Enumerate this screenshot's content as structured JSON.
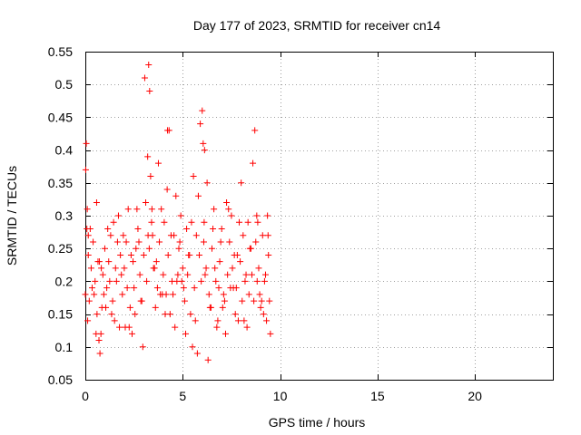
{
  "chart_data": {
    "type": "scatter",
    "title": "Day 177 of 2023, SRMTID for receiver cn14",
    "xlabel": "GPS time / hours",
    "ylabel": "SRMTID / TECUs",
    "xlim": [
      0,
      24
    ],
    "ylim": [
      0.05,
      0.55
    ],
    "xticks": [
      0,
      5,
      10,
      15,
      20
    ],
    "xtick_labels": [
      "0",
      "5",
      "10",
      "15",
      "20"
    ],
    "yticks": [
      0.05,
      0.1,
      0.15,
      0.2,
      0.25,
      0.3,
      0.35,
      0.4,
      0.45,
      0.5,
      0.55
    ],
    "ytick_labels": [
      "0.05",
      "0.1",
      "0.15",
      "0.2",
      "0.25",
      "0.3",
      "0.35",
      "0.4",
      "0.45",
      "0.5",
      "0.55"
    ],
    "grid": true,
    "marker": "+",
    "color": "#ff0000",
    "series": [
      {
        "name": "cn14",
        "x": [
          0.0,
          0.05,
          0.1,
          0.15,
          0.2,
          0.25,
          0.3,
          0.4,
          0.5,
          0.6,
          0.7,
          0.75,
          0.8,
          0.85,
          0.9,
          1.0,
          1.1,
          1.2,
          1.3,
          1.4,
          1.5,
          1.6,
          1.7,
          1.8,
          1.9,
          2.0,
          2.1,
          2.2,
          2.3,
          2.4,
          2.5,
          2.6,
          2.7,
          2.8,
          2.9,
          3.0,
          3.1,
          3.2,
          3.25,
          3.3,
          3.35,
          3.4,
          3.5,
          3.6,
          3.7,
          3.8,
          3.9,
          4.0,
          4.1,
          4.2,
          4.3,
          4.4,
          4.5,
          4.6,
          4.7,
          4.8,
          4.9,
          5.0,
          5.1,
          5.2,
          5.3,
          5.4,
          5.5,
          5.6,
          5.7,
          5.8,
          5.9,
          6.0,
          6.05,
          6.1,
          6.2,
          6.3,
          6.4,
          6.5,
          6.6,
          6.7,
          6.8,
          6.9,
          7.0,
          7.1,
          7.2,
          7.3,
          7.4,
          7.5,
          7.6,
          7.7,
          7.8,
          7.9,
          8.0,
          8.1,
          8.2,
          8.3,
          8.4,
          8.5,
          8.6,
          8.7,
          8.8,
          8.9,
          9.0,
          9.1,
          9.2,
          9.3,
          9.4,
          9.5,
          0.02,
          0.15,
          0.35,
          0.55,
          0.65,
          0.95,
          1.15,
          1.35,
          1.55,
          1.75,
          1.95,
          2.15,
          2.35,
          2.55,
          2.75,
          2.95,
          3.15,
          3.45,
          3.65,
          3.85,
          4.05,
          4.25,
          4.45,
          4.65,
          4.85,
          5.05,
          5.25,
          5.45,
          5.65,
          5.85,
          6.15,
          6.35,
          6.55,
          6.75,
          6.95,
          7.15,
          7.35,
          7.55,
          7.75,
          7.95,
          8.15,
          8.35,
          8.55,
          8.75,
          8.95,
          9.15,
          9.35,
          9.45,
          0.08,
          0.45,
          0.72,
          1.05,
          1.45,
          1.85,
          2.25,
          2.65,
          3.05,
          3.28,
          3.55,
          3.95,
          4.35,
          4.75,
          5.15,
          5.55,
          5.95,
          6.08,
          6.45,
          6.85,
          7.25,
          7.65,
          8.05,
          8.45,
          8.85,
          9.25,
          0.12,
          0.58,
          0.82,
          1.25,
          1.65,
          2.05,
          2.45,
          2.85,
          3.22,
          3.42,
          3.75,
          4.15,
          4.22,
          4.55,
          4.95,
          5.35,
          5.75,
          6.12,
          6.25,
          6.65,
          7.05,
          7.45,
          7.85,
          8.25,
          8.65,
          8.82,
          9.05,
          9.38
        ],
        "y": [
          0.18,
          0.41,
          0.31,
          0.24,
          0.17,
          0.28,
          0.22,
          0.26,
          0.2,
          0.15,
          0.11,
          0.09,
          0.12,
          0.16,
          0.21,
          0.25,
          0.19,
          0.23,
          0.27,
          0.17,
          0.14,
          0.2,
          0.3,
          0.24,
          0.18,
          0.22,
          0.26,
          0.31,
          0.16,
          0.12,
          0.19,
          0.25,
          0.28,
          0.21,
          0.17,
          0.24,
          0.32,
          0.39,
          0.53,
          0.49,
          0.36,
          0.29,
          0.22,
          0.16,
          0.19,
          0.26,
          0.31,
          0.21,
          0.15,
          0.34,
          0.43,
          0.27,
          0.18,
          0.13,
          0.2,
          0.25,
          0.3,
          0.22,
          0.17,
          0.28,
          0.24,
          0.15,
          0.1,
          0.19,
          0.27,
          0.33,
          0.44,
          0.46,
          0.41,
          0.29,
          0.22,
          0.08,
          0.16,
          0.25,
          0.31,
          0.2,
          0.14,
          0.23,
          0.28,
          0.18,
          0.12,
          0.21,
          0.26,
          0.3,
          0.19,
          0.15,
          0.24,
          0.29,
          0.35,
          0.27,
          0.2,
          0.13,
          0.18,
          0.25,
          0.38,
          0.43,
          0.3,
          0.22,
          0.16,
          0.27,
          0.2,
          0.14,
          0.24,
          0.12,
          0.37,
          0.27,
          0.19,
          0.12,
          0.23,
          0.18,
          0.28,
          0.15,
          0.22,
          0.13,
          0.27,
          0.19,
          0.24,
          0.15,
          0.26,
          0.1,
          0.2,
          0.27,
          0.23,
          0.18,
          0.29,
          0.24,
          0.2,
          0.33,
          0.26,
          0.19,
          0.21,
          0.29,
          0.14,
          0.24,
          0.21,
          0.18,
          0.28,
          0.13,
          0.26,
          0.17,
          0.31,
          0.22,
          0.19,
          0.23,
          0.14,
          0.29,
          0.21,
          0.26,
          0.18,
          0.15,
          0.3,
          0.17,
          0.28,
          0.18,
          0.23,
          0.16,
          0.29,
          0.21,
          0.13,
          0.31,
          0.51,
          0.25,
          0.22,
          0.18,
          0.15,
          0.21,
          0.12,
          0.36,
          0.2,
          0.26,
          0.16,
          0.19,
          0.32,
          0.24,
          0.17,
          0.25,
          0.29,
          0.21,
          0.14,
          0.32,
          0.22,
          0.2,
          0.26,
          0.13,
          0.23,
          0.17,
          0.27,
          0.31,
          0.38,
          0.18,
          0.43,
          0.27,
          0.2,
          0.24,
          0.09,
          0.4,
          0.35,
          0.22,
          0.16,
          0.19,
          0.14,
          0.21,
          0.17,
          0.2,
          0.17,
          0.27
        ]
      }
    ]
  }
}
